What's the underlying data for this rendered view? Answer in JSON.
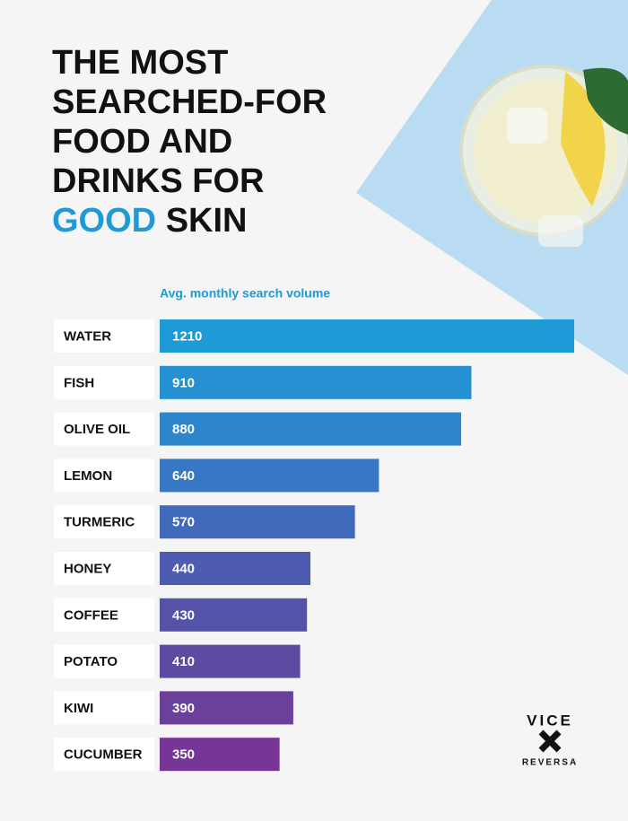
{
  "chart_data": {
    "type": "bar",
    "orientation": "horizontal",
    "title_lines": [
      "THE MOST",
      "SEARCHED-FOR",
      "FOOD AND",
      "DRINKS FOR"
    ],
    "title_highlight": "GOOD",
    "title_end": "SKIN",
    "subtitle": "Avg. monthly search volume",
    "categories": [
      "WATER",
      "FISH",
      "OLIVE OIL",
      "LEMON",
      "TURMERIC",
      "HONEY",
      "COFFEE",
      "POTATO",
      "KIWI",
      "CUCUMBER"
    ],
    "values": [
      1210,
      910,
      880,
      640,
      570,
      440,
      430,
      410,
      390,
      350
    ],
    "colors": [
      "#1e9ad6",
      "#2590d2",
      "#2d85cc",
      "#3777c3",
      "#4169b9",
      "#4d5cb0",
      "#5553a8",
      "#5f4aa2",
      "#6a409b",
      "#773697"
    ],
    "logo": {
      "top": "VICE",
      "bottom": "REVERSA"
    }
  }
}
